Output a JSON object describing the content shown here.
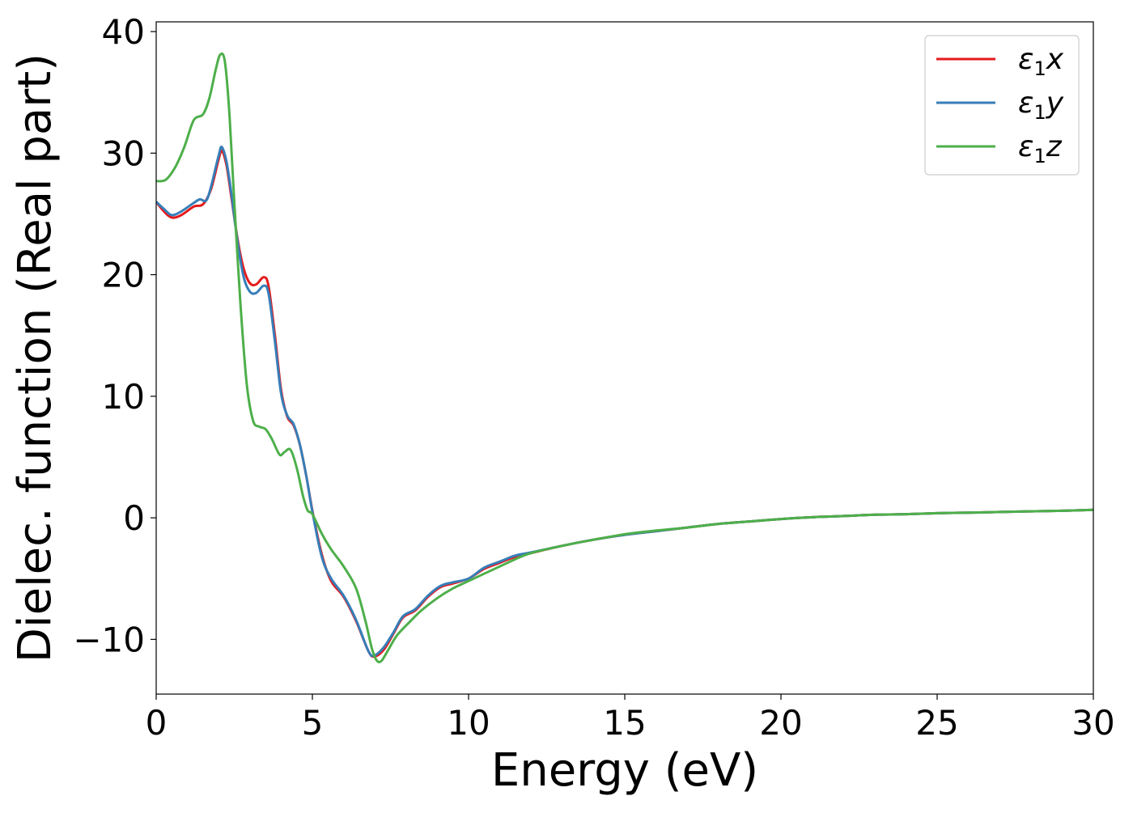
{
  "chart_data": {
    "type": "line",
    "title": "",
    "xlabel": "Energy (eV)",
    "ylabel": "Dielec. function (Real part)",
    "xlim": [
      0,
      30
    ],
    "ylim": [
      -14.5,
      40.8
    ],
    "xticks": [
      0,
      5,
      10,
      15,
      20,
      25,
      30
    ],
    "xtick_labels": [
      "0",
      "5",
      "10",
      "15",
      "20",
      "25",
      "30"
    ],
    "yticks": [
      -10,
      0,
      10,
      20,
      30,
      40
    ],
    "ytick_labels": [
      "−10",
      "0",
      "10",
      "20",
      "30",
      "40"
    ],
    "grid": false,
    "legend_position": "top-right",
    "series": [
      {
        "name": "ε",
        "name_subscript": "1",
        "name_suffix": "x",
        "color": "#e41a1c",
        "points": [
          [
            0,
            26
          ],
          [
            0.25,
            25.2
          ],
          [
            0.5,
            24.7
          ],
          [
            0.8,
            24.9
          ],
          [
            1.2,
            25.6
          ],
          [
            1.5,
            25.8
          ],
          [
            1.75,
            27
          ],
          [
            2.0,
            29.5
          ],
          [
            2.1,
            30.2
          ],
          [
            2.25,
            29
          ],
          [
            2.4,
            26.5
          ],
          [
            2.6,
            23
          ],
          [
            2.8,
            20.5
          ],
          [
            3.0,
            19.3
          ],
          [
            3.2,
            19.2
          ],
          [
            3.45,
            19.8
          ],
          [
            3.6,
            19
          ],
          [
            3.8,
            15
          ],
          [
            4.0,
            10.5
          ],
          [
            4.2,
            8.3
          ],
          [
            4.4,
            7.6
          ],
          [
            4.6,
            6
          ],
          [
            4.8,
            3.5
          ],
          [
            5.0,
            0.6
          ],
          [
            5.3,
            -3
          ],
          [
            5.6,
            -5.2
          ],
          [
            6.0,
            -6.5
          ],
          [
            6.4,
            -8.5
          ],
          [
            6.8,
            -11
          ],
          [
            7.0,
            -11.4
          ],
          [
            7.3,
            -10.8
          ],
          [
            7.6,
            -9.5
          ],
          [
            7.9,
            -8.2
          ],
          [
            8.3,
            -7.6
          ],
          [
            8.7,
            -6.5
          ],
          [
            9.1,
            -5.7
          ],
          [
            9.5,
            -5.4
          ],
          [
            10.0,
            -5.0
          ],
          [
            10.5,
            -4.2
          ],
          [
            11.0,
            -3.7
          ],
          [
            11.5,
            -3.2
          ],
          [
            12.0,
            -2.9
          ],
          [
            13.0,
            -2.3
          ],
          [
            14.0,
            -1.8
          ],
          [
            15.0,
            -1.4
          ],
          [
            16.0,
            -1.1
          ],
          [
            17.0,
            -0.8
          ],
          [
            18.0,
            -0.5
          ],
          [
            19.0,
            -0.3
          ],
          [
            20.0,
            -0.1
          ],
          [
            21.0,
            0.05
          ],
          [
            22.0,
            0.15
          ],
          [
            23.0,
            0.25
          ],
          [
            24.0,
            0.3
          ],
          [
            25.0,
            0.38
          ],
          [
            26.0,
            0.42
          ],
          [
            27.0,
            0.48
          ],
          [
            28.0,
            0.53
          ],
          [
            29.0,
            0.58
          ],
          [
            30.0,
            0.65
          ]
        ]
      },
      {
        "name": "ε",
        "name_subscript": "1",
        "name_suffix": "y",
        "color": "#377eb8",
        "points": [
          [
            0,
            26
          ],
          [
            0.25,
            25.4
          ],
          [
            0.5,
            24.9
          ],
          [
            0.8,
            25.2
          ],
          [
            1.2,
            25.9
          ],
          [
            1.4,
            26.2
          ],
          [
            1.6,
            26.1
          ],
          [
            1.75,
            27.2
          ],
          [
            2.0,
            29.8
          ],
          [
            2.1,
            30.5
          ],
          [
            2.25,
            29.3
          ],
          [
            2.4,
            26.8
          ],
          [
            2.6,
            22.8
          ],
          [
            2.8,
            19.8
          ],
          [
            3.0,
            18.6
          ],
          [
            3.2,
            18.5
          ],
          [
            3.45,
            19.1
          ],
          [
            3.6,
            18.4
          ],
          [
            3.8,
            14.5
          ],
          [
            4.0,
            10.2
          ],
          [
            4.2,
            8.4
          ],
          [
            4.4,
            7.7
          ],
          [
            4.6,
            6
          ],
          [
            4.8,
            3.5
          ],
          [
            5.0,
            0.5
          ],
          [
            5.3,
            -3.2
          ],
          [
            5.6,
            -5
          ],
          [
            6.0,
            -6.4
          ],
          [
            6.4,
            -8.4
          ],
          [
            6.8,
            -11
          ],
          [
            7.0,
            -11.3
          ],
          [
            7.3,
            -10.6
          ],
          [
            7.6,
            -9.4
          ],
          [
            7.9,
            -8.1
          ],
          [
            8.3,
            -7.5
          ],
          [
            8.7,
            -6.4
          ],
          [
            9.1,
            -5.6
          ],
          [
            9.5,
            -5.3
          ],
          [
            10.0,
            -5.0
          ],
          [
            10.5,
            -4.1
          ],
          [
            11.0,
            -3.6
          ],
          [
            11.5,
            -3.1
          ],
          [
            12.0,
            -2.85
          ],
          [
            13.0,
            -2.3
          ],
          [
            14.0,
            -1.8
          ],
          [
            15.0,
            -1.4
          ],
          [
            16.0,
            -1.1
          ],
          [
            17.0,
            -0.8
          ],
          [
            18.0,
            -0.5
          ],
          [
            19.0,
            -0.3
          ],
          [
            20.0,
            -0.1
          ],
          [
            21.0,
            0.05
          ],
          [
            22.0,
            0.15
          ],
          [
            23.0,
            0.25
          ],
          [
            24.0,
            0.3
          ],
          [
            25.0,
            0.38
          ],
          [
            26.0,
            0.42
          ],
          [
            27.0,
            0.48
          ],
          [
            28.0,
            0.53
          ],
          [
            29.0,
            0.58
          ],
          [
            30.0,
            0.65
          ]
        ]
      },
      {
        "name": "ε",
        "name_subscript": "1",
        "name_suffix": "z",
        "color": "#4daf4a",
        "points": [
          [
            0,
            27.7
          ],
          [
            0.3,
            27.8
          ],
          [
            0.6,
            28.8
          ],
          [
            0.9,
            30.5
          ],
          [
            1.2,
            32.7
          ],
          [
            1.5,
            33.2
          ],
          [
            1.7,
            34.5
          ],
          [
            1.9,
            36.8
          ],
          [
            2.05,
            38.1
          ],
          [
            2.2,
            37.5
          ],
          [
            2.35,
            33
          ],
          [
            2.5,
            26
          ],
          [
            2.7,
            17.5
          ],
          [
            2.9,
            11
          ],
          [
            3.1,
            8
          ],
          [
            3.3,
            7.5
          ],
          [
            3.5,
            7.3
          ],
          [
            3.7,
            6.5
          ],
          [
            3.95,
            5.2
          ],
          [
            4.1,
            5.4
          ],
          [
            4.3,
            5.6
          ],
          [
            4.5,
            4.1
          ],
          [
            4.7,
            1.8
          ],
          [
            4.85,
            0.6
          ],
          [
            5.0,
            0.3
          ],
          [
            5.3,
            -1.3
          ],
          [
            5.6,
            -2.6
          ],
          [
            6.0,
            -4
          ],
          [
            6.4,
            -5.8
          ],
          [
            6.7,
            -8.5
          ],
          [
            6.9,
            -10.7
          ],
          [
            7.05,
            -11.7
          ],
          [
            7.2,
            -11.8
          ],
          [
            7.4,
            -11
          ],
          [
            7.7,
            -9.7
          ],
          [
            8.1,
            -8.6
          ],
          [
            8.5,
            -7.6
          ],
          [
            9.0,
            -6.6
          ],
          [
            9.5,
            -5.8
          ],
          [
            10.0,
            -5.2
          ],
          [
            10.5,
            -4.6
          ],
          [
            11.0,
            -4
          ],
          [
            11.5,
            -3.4
          ],
          [
            12.0,
            -2.9
          ],
          [
            13.0,
            -2.3
          ],
          [
            14.0,
            -1.8
          ],
          [
            15.0,
            -1.35
          ],
          [
            16.0,
            -1.05
          ],
          [
            17.0,
            -0.8
          ],
          [
            18.0,
            -0.5
          ],
          [
            19.0,
            -0.3
          ],
          [
            20.0,
            -0.1
          ],
          [
            21.0,
            0.05
          ],
          [
            22.0,
            0.15
          ],
          [
            23.0,
            0.25
          ],
          [
            24.0,
            0.3
          ],
          [
            25.0,
            0.38
          ],
          [
            26.0,
            0.42
          ],
          [
            27.0,
            0.48
          ],
          [
            28.0,
            0.53
          ],
          [
            29.0,
            0.58
          ],
          [
            30.0,
            0.65
          ]
        ]
      }
    ]
  }
}
